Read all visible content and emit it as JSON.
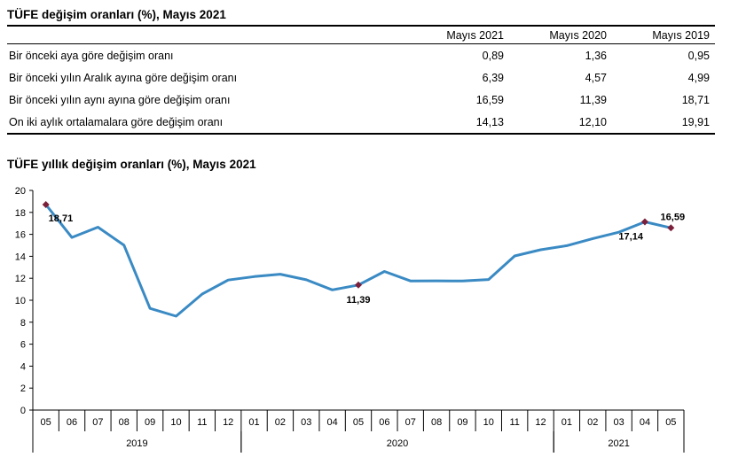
{
  "table": {
    "title": "TÜFE değişim oranları (%), Mayıs 2021",
    "columns": [
      "Mayıs 2021",
      "Mayıs 2020",
      "Mayıs 2019"
    ],
    "rows": [
      {
        "label": "Bir önceki aya göre değişim oranı",
        "values": [
          "0,89",
          "1,36",
          "0,95"
        ]
      },
      {
        "label": "Bir önceki yılın Aralık ayına göre değişim oranı",
        "values": [
          "6,39",
          "4,57",
          "4,99"
        ]
      },
      {
        "label": "Bir önceki yılın aynı ayına göre değişim oranı",
        "values": [
          "16,59",
          "11,39",
          "18,71"
        ]
      },
      {
        "label": "On iki aylık ortalamalara göre değişim oranı",
        "values": [
          "14,13",
          "12,10",
          "19,91"
        ]
      }
    ]
  },
  "chart_data": {
    "type": "line",
    "title": "TÜFE yıllık değişim oranları (%), Mayıs 2021",
    "xlabel": "",
    "ylabel": "",
    "ylim": [
      0,
      20
    ],
    "yticks": [
      0,
      2,
      4,
      6,
      8,
      10,
      12,
      14,
      16,
      18,
      20
    ],
    "categories": [
      "05",
      "06",
      "07",
      "08",
      "09",
      "10",
      "11",
      "12",
      "01",
      "02",
      "03",
      "04",
      "05",
      "06",
      "07",
      "08",
      "09",
      "10",
      "11",
      "12",
      "01",
      "02",
      "03",
      "04",
      "05"
    ],
    "year_groups": [
      {
        "label": "2019",
        "start": 0,
        "end": 7
      },
      {
        "label": "2020",
        "start": 8,
        "end": 19
      },
      {
        "label": "2021",
        "start": 20,
        "end": 24
      }
    ],
    "series": [
      {
        "color": "#3a8ac4",
        "values": [
          18.71,
          15.72,
          16.65,
          15.01,
          9.26,
          8.55,
          10.56,
          11.84,
          12.15,
          12.37,
          11.86,
          10.94,
          11.39,
          12.62,
          11.76,
          11.77,
          11.75,
          11.89,
          14.03,
          14.6,
          14.97,
          15.61,
          16.19,
          17.14,
          16.59
        ]
      }
    ],
    "data_labels": [
      {
        "index": 0,
        "text": "18,71",
        "pos": "below-right"
      },
      {
        "index": 12,
        "text": "11,39",
        "pos": "below"
      },
      {
        "index": 23,
        "text": "17,14",
        "pos": "below-left"
      },
      {
        "index": 24,
        "text": "16,59",
        "pos": "above"
      }
    ],
    "marker_color": "#7b1f3a",
    "grid": false,
    "legend": "none"
  }
}
